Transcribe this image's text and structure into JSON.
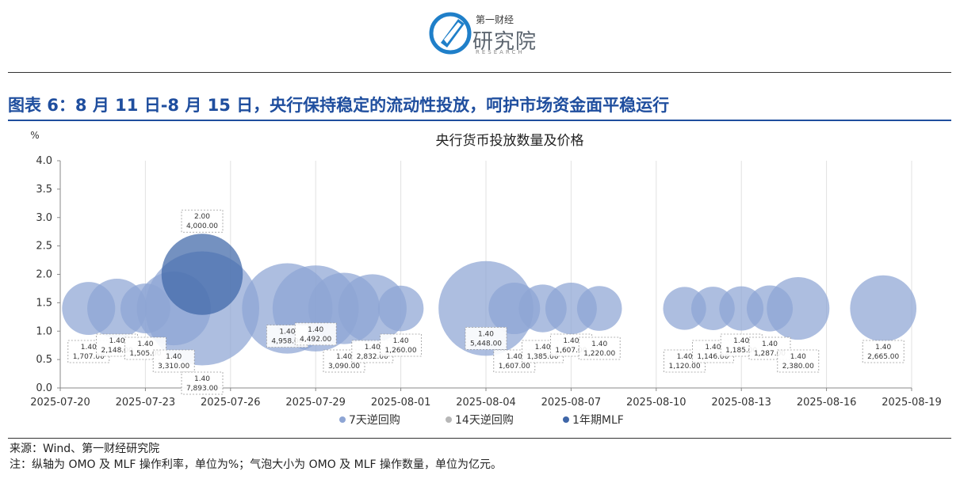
{
  "logo": {
    "top": "第一财经",
    "main": "研究院",
    "sub": "RESEARCH"
  },
  "figure_title": "图表 6：8 月 11 日-8 月 15 日，央行保持稳定的流动性投放，呵护市场资金面平稳运行",
  "footer": {
    "source": "来源：Wind、第一财经研究院",
    "note": "注：纵轴为 OMO 及 MLF 操作利率，单位为%；气泡大小为 OMO 及 MLF 操作数量，单位为亿元。"
  },
  "colors": {
    "omo7": "#8ea5d4",
    "omo14": "#b7b7b7",
    "mlf": "#3f66a8",
    "title": "#1f4e9e"
  },
  "chart_data": {
    "type": "bubble",
    "title": "央行货币投放数量及价格",
    "ylabel": "%",
    "ylim": [
      0,
      4
    ],
    "yticks": [
      "0.0",
      "0.5",
      "1.0",
      "1.5",
      "2.0",
      "2.5",
      "3.0",
      "3.5",
      "4.0"
    ],
    "xlim": [
      "2025-07-20",
      "2025-08-19"
    ],
    "xticks": [
      "2025-07-20",
      "2025-07-23",
      "2025-07-26",
      "2025-07-29",
      "2025-08-01",
      "2025-08-04",
      "2025-08-07",
      "2025-08-10",
      "2025-08-13",
      "2025-08-16",
      "2025-08-19"
    ],
    "grid": "vertical",
    "legend_position": "bottom",
    "series": [
      {
        "name": "7天逆回购",
        "color": "#8ea5d4",
        "points": [
          {
            "x": "2025-07-21",
            "y": 1.4,
            "size": 1707.0,
            "label_rate": "1.40",
            "label_size": "1,707.00"
          },
          {
            "x": "2025-07-22",
            "y": 1.4,
            "size": 2148.0,
            "label_rate": "1.40",
            "label_size": "2,148.00"
          },
          {
            "x": "2025-07-23",
            "y": 1.4,
            "size": 1505.0,
            "label_rate": "1.40",
            "label_size": "1,505.00"
          },
          {
            "x": "2025-07-24",
            "y": 1.4,
            "size": 3310.0,
            "label_rate": "1.40",
            "label_size": "3,310.00"
          },
          {
            "x": "2025-07-25",
            "y": 1.4,
            "size": 7893.0,
            "label_rate": "1.40",
            "label_size": "7,893.00"
          },
          {
            "x": "2025-07-28",
            "y": 1.4,
            "size": 4958.0,
            "label_rate": "1.40",
            "label_size": "4,958.00"
          },
          {
            "x": "2025-07-29",
            "y": 1.4,
            "size": 4492.0,
            "label_rate": "1.40",
            "label_size": "4,492.00"
          },
          {
            "x": "2025-07-30",
            "y": 1.4,
            "size": 3090.0,
            "label_rate": "1.40",
            "label_size": "3,090.00"
          },
          {
            "x": "2025-07-31",
            "y": 1.4,
            "size": 2832.0,
            "label_rate": "1.40",
            "label_size": "2,832.00"
          },
          {
            "x": "2025-08-01",
            "y": 1.4,
            "size": 1260.0,
            "label_rate": "1.40",
            "label_size": "1,260.00"
          },
          {
            "x": "2025-08-04",
            "y": 1.4,
            "size": 5448.0,
            "label_rate": "1.40",
            "label_size": "5,448.00"
          },
          {
            "x": "2025-08-05",
            "y": 1.4,
            "size": 1607.0,
            "label_rate": "1.40",
            "label_size": "1,607.00"
          },
          {
            "x": "2025-08-06",
            "y": 1.4,
            "size": 1385.0,
            "label_rate": "1.40",
            "label_size": "1,385.00"
          },
          {
            "x": "2025-08-07",
            "y": 1.4,
            "size": 1607.0,
            "label_rate": "1.40",
            "label_size": "1,607.00"
          },
          {
            "x": "2025-08-08",
            "y": 1.4,
            "size": 1220.0,
            "label_rate": "1.40",
            "label_size": "1,220.00"
          },
          {
            "x": "2025-08-11",
            "y": 1.4,
            "size": 1120.0,
            "label_rate": "1.40",
            "label_size": "1,120.00"
          },
          {
            "x": "2025-08-12",
            "y": 1.4,
            "size": 1146.0,
            "label_rate": "1.40",
            "label_size": "1,146.00"
          },
          {
            "x": "2025-08-13",
            "y": 1.4,
            "size": 1185.0,
            "label_rate": "1.40",
            "label_size": "1,185.00"
          },
          {
            "x": "2025-08-14",
            "y": 1.4,
            "size": 1287.0,
            "label_rate": "1.40",
            "label_size": "1,287.00"
          },
          {
            "x": "2025-08-15",
            "y": 1.4,
            "size": 2380.0,
            "label_rate": "1.40",
            "label_size": "2,380.00"
          },
          {
            "x": "2025-08-18",
            "y": 1.4,
            "size": 2665.0,
            "label_rate": "1.40",
            "label_size": "2,665.00"
          }
        ]
      },
      {
        "name": "14天逆回购",
        "color": "#b7b7b7",
        "points": []
      },
      {
        "name": "1年期MLF",
        "color": "#3f66a8",
        "points": [
          {
            "x": "2025-07-25",
            "y": 2.0,
            "size": 4000.0,
            "label_rate": "2.00",
            "label_size": "4,000.00"
          }
        ]
      }
    ]
  }
}
